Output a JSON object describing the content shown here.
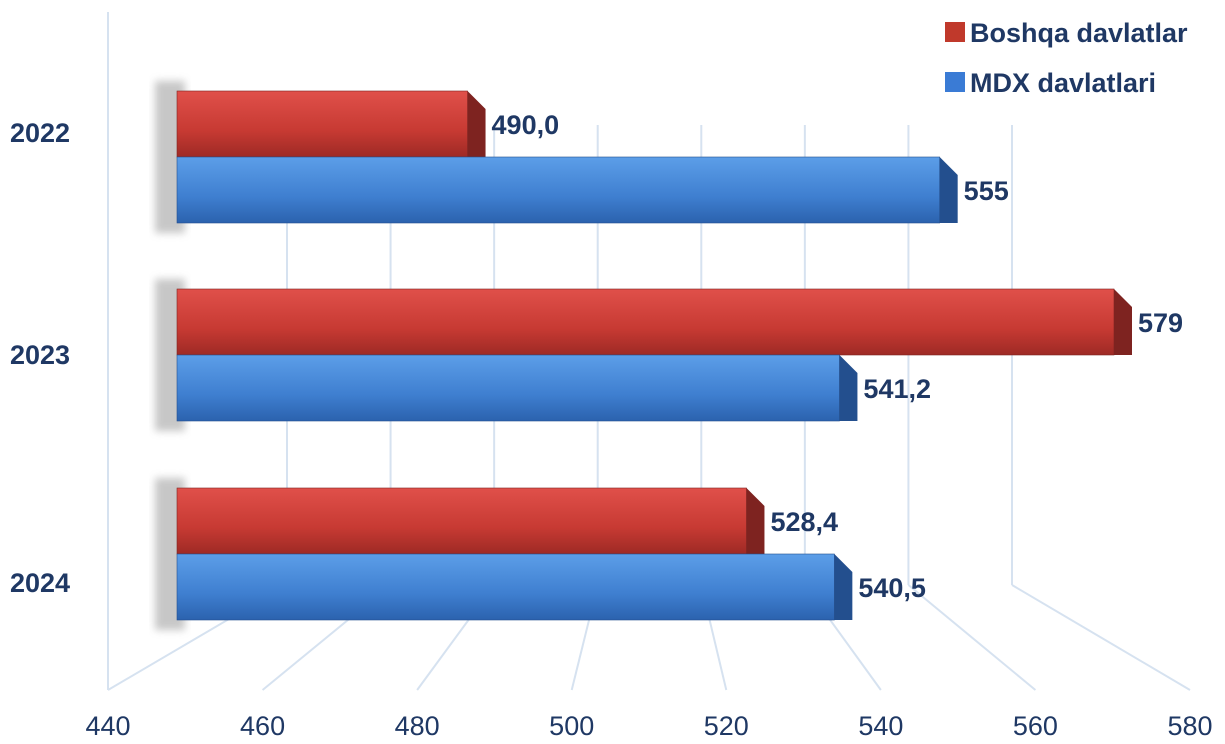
{
  "chart_data": {
    "type": "bar",
    "orientation": "horizontal",
    "style": "3d",
    "categories": [
      "2022",
      "2023",
      "2024"
    ],
    "series": [
      {
        "name": "Boshqa davlatlar",
        "values": [
          490.0,
          579,
          528.4
        ],
        "labels": [
          "490,0",
          "579",
          "528,4"
        ],
        "color": "#C0392B"
      },
      {
        "name": "MDX davlatlari",
        "values": [
          555,
          541.2,
          540.5
        ],
        "labels": [
          "555",
          "541,2",
          "540,5"
        ],
        "color": "#3A7BD5"
      }
    ],
    "xlim": [
      440,
      580
    ],
    "xticks": [
      "440",
      "460",
      "480",
      "500",
      "520",
      "540",
      "560",
      "580"
    ],
    "grid": true,
    "legend": "top-right"
  }
}
